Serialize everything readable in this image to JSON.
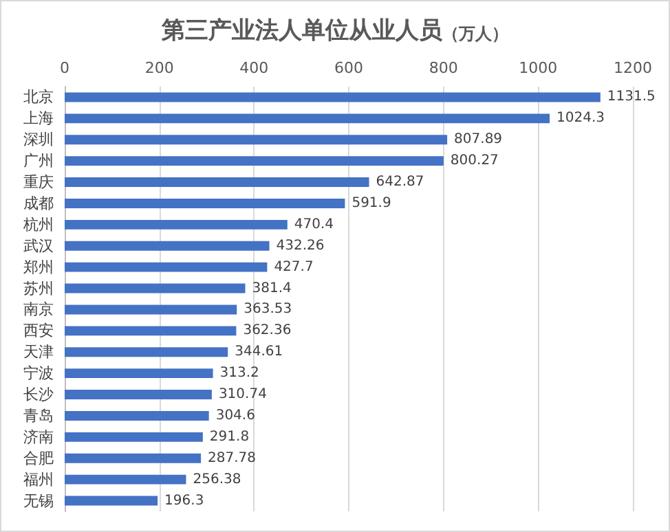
{
  "chart_data": {
    "type": "bar",
    "orientation": "horizontal",
    "title": "第三产业法人单位从业人员",
    "subtitle": "（万人）",
    "categories": [
      "北京",
      "上海",
      "深圳",
      "广州",
      "重庆",
      "成都",
      "杭州",
      "武汉",
      "郑州",
      "苏州",
      "南京",
      "西安",
      "天津",
      "宁波",
      "长沙",
      "青岛",
      "济南",
      "合肥",
      "福州",
      "无锡"
    ],
    "values": [
      1131.5,
      1024.3,
      807.89,
      800.27,
      642.87,
      591.9,
      470.4,
      432.26,
      427.7,
      381.4,
      363.53,
      362.36,
      344.61,
      313.2,
      310.74,
      304.6,
      291.8,
      287.78,
      256.38,
      196.3
    ],
    "color": "#4472c4",
    "xlim": [
      0,
      1200
    ],
    "xticks": [
      0,
      200,
      400,
      600,
      800,
      1000,
      1200
    ],
    "grid": "x",
    "data_labels": true
  }
}
